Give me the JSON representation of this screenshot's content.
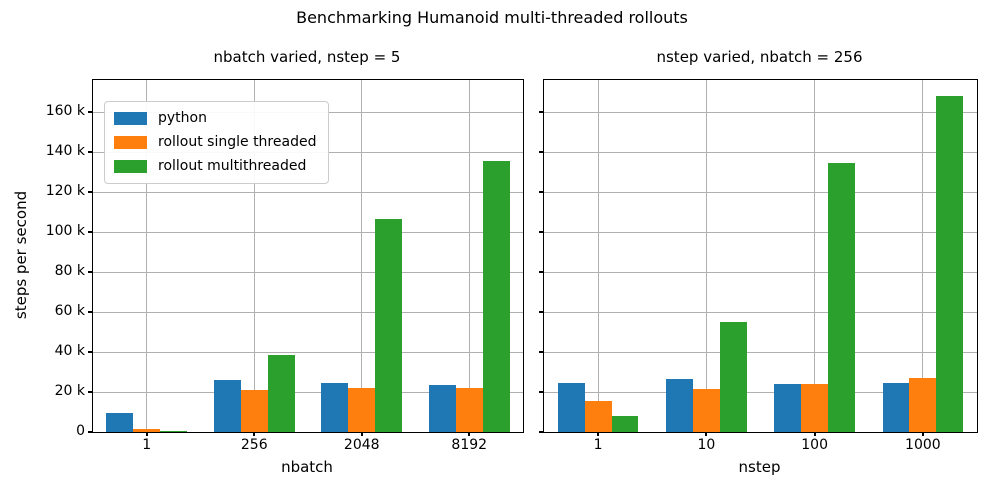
{
  "figure": {
    "title": "Benchmarking Humanoid multi-threaded rollouts",
    "background": "#ffffff"
  },
  "axis": {
    "ylabel": "steps per second",
    "ymax": 176000,
    "yticks": [
      {
        "value": 0,
        "label": "0"
      },
      {
        "value": 20000,
        "label": "20 k"
      },
      {
        "value": 40000,
        "label": "40 k"
      },
      {
        "value": 60000,
        "label": "60 k"
      },
      {
        "value": 80000,
        "label": "80 k"
      },
      {
        "value": 100000,
        "label": "100 k"
      },
      {
        "value": 120000,
        "label": "120 k"
      },
      {
        "value": 140000,
        "label": "140 k"
      },
      {
        "value": 160000,
        "label": "160 k"
      }
    ],
    "grid_color": "#b0b0b0",
    "spine_color": "#000000"
  },
  "legend": {
    "position": "upper-left-of-left-subplot",
    "items": [
      {
        "label": "python",
        "color": "#1f77b4"
      },
      {
        "label": "rollout single threaded",
        "color": "#ff7f0e"
      },
      {
        "label": "rollout multithreaded",
        "color": "#2ca02c"
      }
    ]
  },
  "chart_data": [
    {
      "type": "bar",
      "title": "nbatch varied, nstep = 5",
      "xlabel": "nbatch",
      "ylabel": "steps per second",
      "categories": [
        "1",
        "256",
        "2048",
        "8192"
      ],
      "series": [
        {
          "name": "python",
          "color": "#1f77b4",
          "values": [
            9500,
            26000,
            24500,
            23500
          ]
        },
        {
          "name": "rollout single threaded",
          "color": "#ff7f0e",
          "values": [
            1500,
            21000,
            22000,
            22000
          ]
        },
        {
          "name": "rollout multithreaded",
          "color": "#2ca02c",
          "values": [
            500,
            38500,
            106500,
            135500
          ]
        }
      ],
      "ylim": [
        0,
        176000
      ],
      "grid": true,
      "legend_visible": true
    },
    {
      "type": "bar",
      "title": "nstep varied, nbatch = 256",
      "xlabel": "nstep",
      "ylabel": "steps per second",
      "categories": [
        "1",
        "10",
        "100",
        "1000"
      ],
      "series": [
        {
          "name": "python",
          "color": "#1f77b4",
          "values": [
            24500,
            26500,
            24000,
            24500
          ]
        },
        {
          "name": "rollout single threaded",
          "color": "#ff7f0e",
          "values": [
            15500,
            21500,
            24000,
            27000
          ]
        },
        {
          "name": "rollout multithreaded",
          "color": "#2ca02c",
          "values": [
            8000,
            55000,
            134500,
            168000
          ]
        }
      ],
      "ylim": [
        0,
        176000
      ],
      "grid": true,
      "legend_visible": false
    }
  ]
}
